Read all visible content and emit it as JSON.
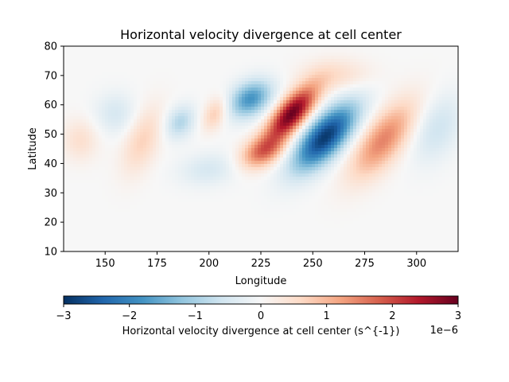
{
  "chart_data": {
    "type": "heatmap",
    "title": "Horizontal velocity divergence at cell center",
    "xlabel": "Longitude",
    "ylabel": "Latitude",
    "xlim": [
      130,
      320
    ],
    "ylim": [
      10,
      80
    ],
    "x_ticks": [
      150,
      175,
      200,
      225,
      250,
      275,
      300
    ],
    "y_ticks": [
      10,
      20,
      30,
      40,
      50,
      60,
      70,
      80
    ],
    "colormap": "RdBu_r",
    "grid": false,
    "features": [
      {
        "lon": 240,
        "lat": 57,
        "value": 3e-06,
        "sigma_lon": 6,
        "sigma_lat": 6.5,
        "skew": 0.9
      },
      {
        "lon": 226,
        "lat": 44,
        "value": 1.6e-06,
        "sigma_lon": 7,
        "sigma_lat": 4,
        "skew": 0.7
      },
      {
        "lon": 256,
        "lat": 49,
        "value": -2.9e-06,
        "sigma_lon": 8,
        "sigma_lat": 8,
        "skew": 0.9
      },
      {
        "lon": 220,
        "lat": 62,
        "value": -1.8e-06,
        "sigma_lon": 7,
        "sigma_lat": 4.5,
        "skew": 0.5
      },
      {
        "lon": 284,
        "lat": 48,
        "value": 1.5e-06,
        "sigma_lon": 8,
        "sigma_lat": 9,
        "skew": 0.8
      },
      {
        "lon": 186,
        "lat": 54,
        "value": -9e-07,
        "sigma_lon": 5,
        "sigma_lat": 4,
        "skew": 0.3
      },
      {
        "lon": 203,
        "lat": 57,
        "value": 8e-07,
        "sigma_lon": 4,
        "sigma_lat": 4,
        "skew": 0.4
      },
      {
        "lon": 168,
        "lat": 48,
        "value": 7e-07,
        "sigma_lon": 6,
        "sigma_lat": 8,
        "skew": 0.4
      },
      {
        "lon": 155,
        "lat": 57,
        "value": -5e-07,
        "sigma_lon": 7,
        "sigma_lat": 5,
        "skew": 0.0
      },
      {
        "lon": 138,
        "lat": 48,
        "value": 5e-07,
        "sigma_lon": 6,
        "sigma_lat": 5,
        "skew": 0.0
      },
      {
        "lon": 200,
        "lat": 38,
        "value": -5e-07,
        "sigma_lon": 10,
        "sigma_lat": 4,
        "skew": 0.4
      },
      {
        "lon": 310,
        "lat": 52,
        "value": -6e-07,
        "sigma_lon": 8,
        "sigma_lat": 8,
        "skew": 0.4
      },
      {
        "lon": 262,
        "lat": 70,
        "value": 5e-07,
        "sigma_lon": 12,
        "sigma_lat": 4,
        "skew": 0.0
      }
    ],
    "colorbar": {
      "min": -3,
      "max": 3,
      "ticks": [
        -3,
        -2,
        -1,
        0,
        1,
        2,
        3
      ],
      "tick_labels": [
        "−3",
        "−2",
        "−1",
        "0",
        "1",
        "2",
        "3"
      ],
      "label": "Horizontal velocity divergence at cell center (s^{-1})",
      "offset_text": "1e−6"
    }
  }
}
